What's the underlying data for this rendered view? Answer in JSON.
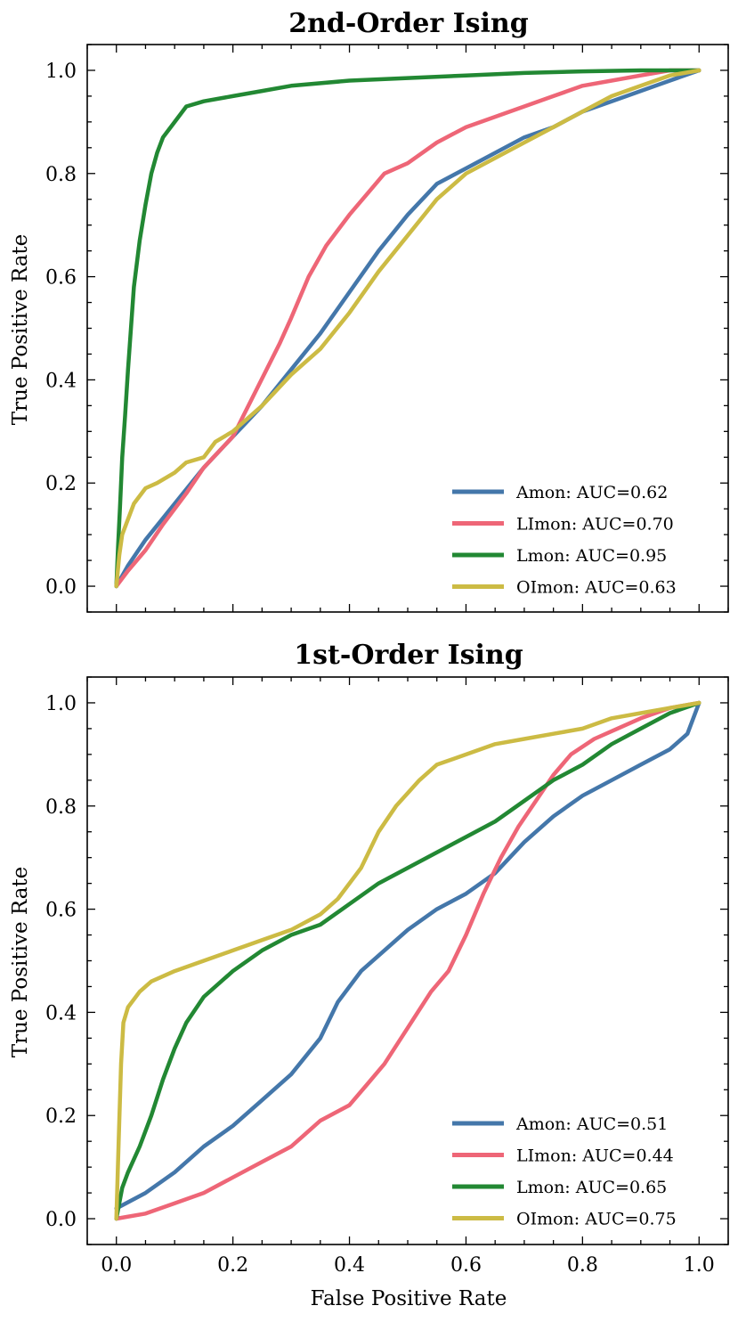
{
  "chart_data": [
    {
      "type": "line",
      "title": "2nd-Order Ising",
      "xlabel": "",
      "ylabel": "True Positive Rate",
      "xlim": [
        -0.05,
        1.05
      ],
      "ylim": [
        -0.05,
        1.05
      ],
      "xticks": [
        "0.0",
        "0.2",
        "0.4",
        "0.6",
        "0.8",
        "1.0"
      ],
      "yticks": [
        "0.0",
        "0.2",
        "0.4",
        "0.6",
        "0.8",
        "1.0"
      ],
      "grid": false,
      "legend": "bottom-right",
      "series": [
        {
          "name": "Amon: AUC=0.62",
          "color": "#4477aa",
          "x": [
            0,
            0.02,
            0.05,
            0.1,
            0.15,
            0.2,
            0.25,
            0.3,
            0.35,
            0.4,
            0.45,
            0.5,
            0.55,
            0.6,
            0.65,
            0.7,
            0.75,
            0.8,
            0.85,
            0.9,
            0.95,
            1.0
          ],
          "y": [
            0,
            0.04,
            0.09,
            0.16,
            0.23,
            0.29,
            0.35,
            0.42,
            0.49,
            0.57,
            0.65,
            0.72,
            0.78,
            0.81,
            0.84,
            0.87,
            0.89,
            0.92,
            0.94,
            0.96,
            0.98,
            1.0
          ]
        },
        {
          "name": "LImon: AUC=0.70",
          "color": "#ee6677",
          "x": [
            0,
            0.02,
            0.05,
            0.08,
            0.12,
            0.15,
            0.2,
            0.24,
            0.28,
            0.3,
            0.33,
            0.36,
            0.4,
            0.43,
            0.46,
            0.5,
            0.55,
            0.6,
            0.65,
            0.7,
            0.75,
            0.8,
            0.85,
            0.9,
            0.95,
            1.0
          ],
          "y": [
            0,
            0.03,
            0.07,
            0.12,
            0.18,
            0.23,
            0.29,
            0.38,
            0.47,
            0.52,
            0.6,
            0.66,
            0.72,
            0.76,
            0.8,
            0.82,
            0.86,
            0.89,
            0.91,
            0.93,
            0.95,
            0.97,
            0.98,
            0.99,
            1.0,
            1.0
          ]
        },
        {
          "name": "Lmon: AUC=0.95",
          "color": "#228833",
          "x": [
            0,
            0.003,
            0.006,
            0.01,
            0.015,
            0.02,
            0.025,
            0.03,
            0.04,
            0.05,
            0.06,
            0.07,
            0.08,
            0.1,
            0.12,
            0.15,
            0.2,
            0.25,
            0.3,
            0.4,
            0.5,
            0.6,
            0.7,
            0.8,
            0.9,
            1.0
          ],
          "y": [
            0,
            0.08,
            0.15,
            0.25,
            0.33,
            0.42,
            0.5,
            0.58,
            0.67,
            0.74,
            0.8,
            0.84,
            0.87,
            0.9,
            0.93,
            0.94,
            0.95,
            0.96,
            0.97,
            0.98,
            0.985,
            0.99,
            0.995,
            0.998,
            1.0,
            1.0
          ]
        },
        {
          "name": "OImon: AUC=0.63",
          "color": "#ccbb44",
          "x": [
            0,
            0.005,
            0.01,
            0.02,
            0.03,
            0.05,
            0.07,
            0.1,
            0.12,
            0.15,
            0.17,
            0.2,
            0.25,
            0.3,
            0.35,
            0.4,
            0.45,
            0.5,
            0.55,
            0.6,
            0.65,
            0.7,
            0.75,
            0.8,
            0.85,
            0.9,
            0.95,
            1.0
          ],
          "y": [
            0,
            0.06,
            0.1,
            0.13,
            0.16,
            0.19,
            0.2,
            0.22,
            0.24,
            0.25,
            0.28,
            0.3,
            0.35,
            0.41,
            0.46,
            0.53,
            0.61,
            0.68,
            0.75,
            0.8,
            0.83,
            0.86,
            0.89,
            0.92,
            0.95,
            0.97,
            0.99,
            1.0
          ]
        }
      ]
    },
    {
      "type": "line",
      "title": "1st-Order Ising",
      "xlabel": "False Positive Rate",
      "ylabel": "True Positive Rate",
      "xlim": [
        -0.05,
        1.05
      ],
      "ylim": [
        -0.05,
        1.05
      ],
      "xticks": [
        "0.0",
        "0.2",
        "0.4",
        "0.6",
        "0.8",
        "1.0"
      ],
      "yticks": [
        "0.0",
        "0.2",
        "0.4",
        "0.6",
        "0.8",
        "1.0"
      ],
      "grid": false,
      "legend": "bottom-right",
      "series": [
        {
          "name": "Amon: AUC=0.51",
          "color": "#4477aa",
          "x": [
            0,
            0.05,
            0.1,
            0.15,
            0.2,
            0.25,
            0.3,
            0.35,
            0.38,
            0.42,
            0.46,
            0.5,
            0.55,
            0.6,
            0.65,
            0.7,
            0.75,
            0.8,
            0.85,
            0.9,
            0.95,
            0.98,
            1.0
          ],
          "y": [
            0.02,
            0.05,
            0.09,
            0.14,
            0.18,
            0.23,
            0.28,
            0.35,
            0.42,
            0.48,
            0.52,
            0.56,
            0.6,
            0.63,
            0.67,
            0.73,
            0.78,
            0.82,
            0.85,
            0.88,
            0.91,
            0.94,
            1.0
          ]
        },
        {
          "name": "LImon: AUC=0.44",
          "color": "#ee6677",
          "x": [
            0,
            0.05,
            0.1,
            0.15,
            0.2,
            0.25,
            0.3,
            0.32,
            0.35,
            0.4,
            0.43,
            0.46,
            0.5,
            0.54,
            0.57,
            0.6,
            0.63,
            0.66,
            0.69,
            0.72,
            0.75,
            0.78,
            0.82,
            0.86,
            0.9,
            0.95,
            1.0
          ],
          "y": [
            0,
            0.01,
            0.03,
            0.05,
            0.08,
            0.11,
            0.14,
            0.16,
            0.19,
            0.22,
            0.26,
            0.3,
            0.37,
            0.44,
            0.48,
            0.55,
            0.63,
            0.7,
            0.76,
            0.81,
            0.86,
            0.9,
            0.93,
            0.95,
            0.97,
            0.99,
            1.0
          ]
        },
        {
          "name": "Lmon: AUC=0.65",
          "color": "#228833",
          "x": [
            0,
            0.01,
            0.02,
            0.04,
            0.06,
            0.08,
            0.1,
            0.12,
            0.15,
            0.2,
            0.25,
            0.3,
            0.35,
            0.4,
            0.45,
            0.5,
            0.55,
            0.6,
            0.65,
            0.7,
            0.75,
            0.8,
            0.85,
            0.9,
            0.95,
            1.0
          ],
          "y": [
            0,
            0.06,
            0.09,
            0.14,
            0.2,
            0.27,
            0.33,
            0.38,
            0.43,
            0.48,
            0.52,
            0.55,
            0.57,
            0.61,
            0.65,
            0.68,
            0.71,
            0.74,
            0.77,
            0.81,
            0.85,
            0.88,
            0.92,
            0.95,
            0.98,
            1.0
          ]
        },
        {
          "name": "OImon: AUC=0.75",
          "color": "#ccbb44",
          "x": [
            0,
            0.004,
            0.008,
            0.012,
            0.02,
            0.04,
            0.06,
            0.1,
            0.15,
            0.2,
            0.25,
            0.3,
            0.35,
            0.38,
            0.42,
            0.45,
            0.48,
            0.52,
            0.55,
            0.6,
            0.65,
            0.7,
            0.75,
            0.8,
            0.85,
            0.9,
            0.95,
            1.0
          ],
          "y": [
            0,
            0.15,
            0.3,
            0.38,
            0.41,
            0.44,
            0.46,
            0.48,
            0.5,
            0.52,
            0.54,
            0.56,
            0.59,
            0.62,
            0.68,
            0.75,
            0.8,
            0.85,
            0.88,
            0.9,
            0.92,
            0.93,
            0.94,
            0.95,
            0.97,
            0.98,
            0.99,
            1.0
          ]
        }
      ]
    }
  ]
}
